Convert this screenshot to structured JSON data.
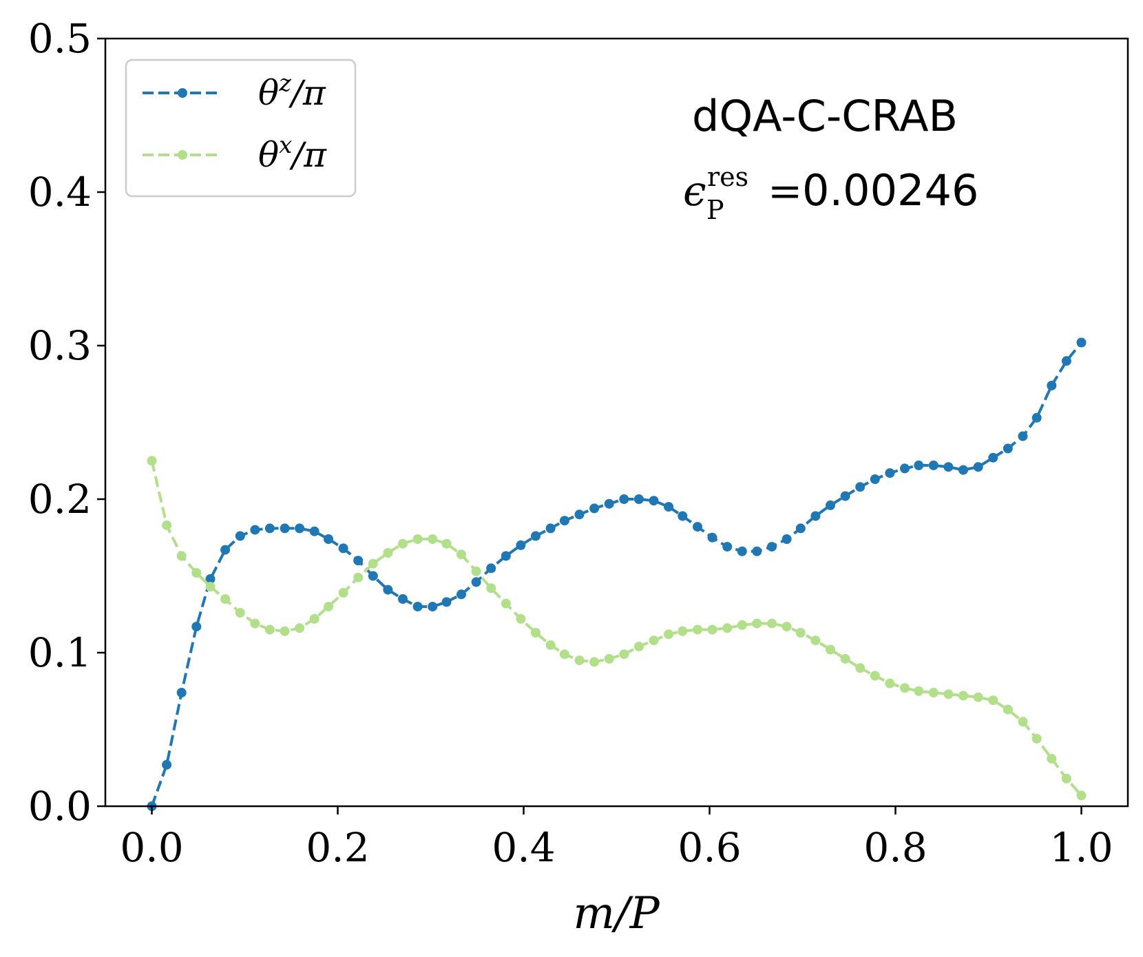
{
  "chart_data": {
    "type": "line",
    "xlabel": "m/P",
    "ylabel": "",
    "xlim": [
      -0.05,
      1.05
    ],
    "ylim": [
      0.0,
      0.5
    ],
    "x_ticks": [
      0.0,
      0.2,
      0.4,
      0.6,
      0.8,
      1.0
    ],
    "x_tick_labels": [
      "0.0",
      "0.2",
      "0.4",
      "0.6",
      "0.8",
      "1.0"
    ],
    "y_ticks": [
      0.0,
      0.1,
      0.2,
      0.3,
      0.4,
      0.5
    ],
    "y_tick_labels": [
      "0.0",
      "0.1",
      "0.2",
      "0.3",
      "0.4",
      "0.5"
    ],
    "grid": false,
    "legend_position": "top-left",
    "annotation": {
      "title": "dQA-C-CRAB",
      "metric_symbol": "ϵ",
      "metric_superscript": "res",
      "metric_subscript": "P",
      "metric_equals": "=",
      "metric_value": "0.00246"
    },
    "series": [
      {
        "name": "θz/π",
        "label_main": "θ",
        "label_sup": "z",
        "label_tail": "/π",
        "color": "#1f77b4",
        "x": [
          0.0,
          0.016,
          0.032,
          0.048,
          0.063,
          0.079,
          0.095,
          0.111,
          0.127,
          0.143,
          0.159,
          0.175,
          0.19,
          0.206,
          0.222,
          0.238,
          0.254,
          0.27,
          0.286,
          0.302,
          0.317,
          0.333,
          0.349,
          0.365,
          0.381,
          0.397,
          0.413,
          0.429,
          0.444,
          0.46,
          0.476,
          0.492,
          0.508,
          0.524,
          0.54,
          0.556,
          0.571,
          0.587,
          0.603,
          0.619,
          0.635,
          0.651,
          0.667,
          0.683,
          0.698,
          0.714,
          0.73,
          0.746,
          0.762,
          0.778,
          0.794,
          0.81,
          0.825,
          0.841,
          0.857,
          0.873,
          0.889,
          0.905,
          0.921,
          0.937,
          0.952,
          0.968,
          0.984,
          1.0
        ],
        "values": [
          0.0,
          0.027,
          0.074,
          0.117,
          0.148,
          0.167,
          0.176,
          0.18,
          0.181,
          0.181,
          0.181,
          0.179,
          0.174,
          0.168,
          0.16,
          0.15,
          0.141,
          0.135,
          0.13,
          0.13,
          0.133,
          0.138,
          0.146,
          0.155,
          0.163,
          0.17,
          0.176,
          0.181,
          0.186,
          0.19,
          0.194,
          0.197,
          0.2,
          0.2,
          0.199,
          0.195,
          0.189,
          0.182,
          0.175,
          0.169,
          0.166,
          0.166,
          0.169,
          0.174,
          0.181,
          0.189,
          0.196,
          0.202,
          0.208,
          0.213,
          0.217,
          0.22,
          0.222,
          0.222,
          0.221,
          0.219,
          0.221,
          0.227,
          0.233,
          0.241,
          0.253,
          0.274,
          0.29,
          0.302
        ]
      },
      {
        "name": "θx/π",
        "label_main": "θ",
        "label_sup": "x",
        "label_tail": "/π",
        "color": "#b2df8a",
        "x": [
          0.0,
          0.016,
          0.032,
          0.048,
          0.063,
          0.079,
          0.095,
          0.111,
          0.127,
          0.143,
          0.159,
          0.175,
          0.19,
          0.206,
          0.222,
          0.238,
          0.254,
          0.27,
          0.286,
          0.302,
          0.317,
          0.333,
          0.349,
          0.365,
          0.381,
          0.397,
          0.413,
          0.429,
          0.444,
          0.46,
          0.476,
          0.492,
          0.508,
          0.524,
          0.54,
          0.556,
          0.571,
          0.587,
          0.603,
          0.619,
          0.635,
          0.651,
          0.667,
          0.683,
          0.698,
          0.714,
          0.73,
          0.746,
          0.762,
          0.778,
          0.794,
          0.81,
          0.825,
          0.841,
          0.857,
          0.873,
          0.889,
          0.905,
          0.921,
          0.937,
          0.952,
          0.968,
          0.984,
          1.0
        ],
        "values": [
          0.225,
          0.183,
          0.163,
          0.152,
          0.143,
          0.135,
          0.126,
          0.119,
          0.115,
          0.114,
          0.116,
          0.122,
          0.13,
          0.139,
          0.149,
          0.158,
          0.165,
          0.171,
          0.174,
          0.174,
          0.171,
          0.164,
          0.153,
          0.142,
          0.132,
          0.122,
          0.113,
          0.105,
          0.099,
          0.095,
          0.094,
          0.096,
          0.099,
          0.104,
          0.108,
          0.112,
          0.114,
          0.115,
          0.115,
          0.116,
          0.118,
          0.119,
          0.119,
          0.117,
          0.113,
          0.108,
          0.102,
          0.096,
          0.09,
          0.085,
          0.08,
          0.077,
          0.075,
          0.074,
          0.073,
          0.072,
          0.071,
          0.069,
          0.063,
          0.055,
          0.044,
          0.031,
          0.018,
          0.007
        ]
      }
    ]
  }
}
